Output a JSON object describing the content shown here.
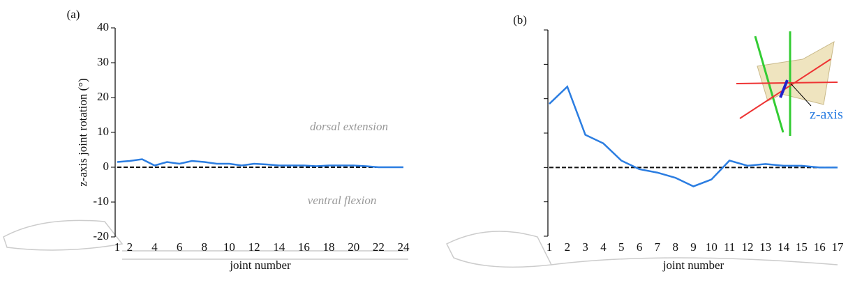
{
  "chart_data": [
    {
      "type": "line",
      "panel_label": "(a)",
      "ylabel": "z-axis joint rotation (°)",
      "xlabel": "joint number",
      "annotations": [
        "dorsal extension",
        "ventral flexion"
      ],
      "x": [
        1,
        2,
        3,
        4,
        5,
        6,
        7,
        8,
        9,
        10,
        11,
        12,
        13,
        14,
        15,
        16,
        17,
        18,
        19,
        20,
        21,
        22,
        23,
        24
      ],
      "series": [
        {
          "color": "#2b7de1",
          "values": [
            1.5,
            1.8,
            2.3,
            0.5,
            1.5,
            1.0,
            1.8,
            1.5,
            1.0,
            1.0,
            0.5,
            1.0,
            0.8,
            0.5,
            0.5,
            0.5,
            0.3,
            0.5,
            0.5,
            0.5,
            0.3,
            0,
            0,
            0
          ]
        }
      ],
      "reference_line": 0,
      "xlim": [
        1,
        24
      ],
      "xticks": [
        1,
        2,
        4,
        6,
        8,
        10,
        12,
        14,
        16,
        18,
        20,
        22,
        24
      ],
      "ylim": [
        -20,
        40
      ],
      "yticks": [
        -20,
        -10,
        0,
        10,
        20,
        30,
        40
      ],
      "show_ytick_labels": true
    },
    {
      "type": "line",
      "panel_label": "(b)",
      "xlabel": "joint number",
      "annotations": [
        "z-axis"
      ],
      "x": [
        1,
        2,
        3,
        4,
        5,
        6,
        7,
        8,
        9,
        10,
        11,
        12,
        13,
        14,
        15,
        16,
        17
      ],
      "series": [
        {
          "color": "#2b7de1",
          "values": [
            18.5,
            23.5,
            9.5,
            7,
            2,
            -0.5,
            -1.5,
            -3,
            -5.5,
            -3.5,
            2,
            0.5,
            1,
            0.5,
            0.5,
            0,
            0
          ]
        }
      ],
      "reference_line": 0,
      "xlim": [
        1,
        17
      ],
      "xticks": [
        1,
        2,
        3,
        4,
        5,
        6,
        7,
        8,
        9,
        10,
        11,
        12,
        13,
        14,
        15,
        16,
        17
      ],
      "ylim": [
        -20,
        40
      ],
      "yticks": [
        -20,
        -10,
        0,
        10,
        20,
        30,
        40
      ],
      "show_ytick_labels": false
    }
  ]
}
